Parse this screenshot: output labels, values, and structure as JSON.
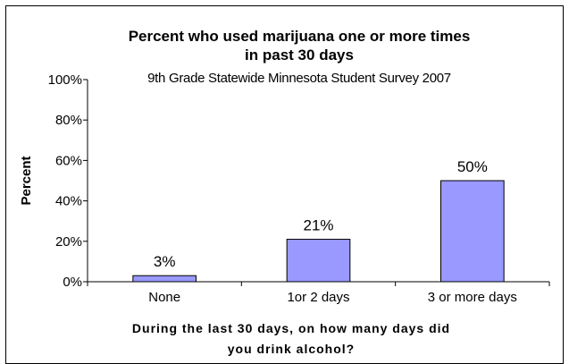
{
  "chart_data": {
    "type": "bar",
    "title_lines": [
      "Percent who used marijuana one or more times",
      "in past 30 days"
    ],
    "subtitle": "9th Grade Statewide Minnesota Student Survey 2007",
    "categories": [
      "None",
      "1or 2 days",
      "3 or more days"
    ],
    "values": [
      3,
      21,
      50
    ],
    "data_labels": [
      "3%",
      "21%",
      "50%"
    ],
    "xlabel_lines": [
      "During the last 30 days, on how many days did",
      "you drink alcohol?"
    ],
    "ylabel": "Percent",
    "y_ticks": [
      "0%",
      "20%",
      "40%",
      "60%",
      "80%",
      "100%"
    ],
    "ylim": [
      0,
      100
    ],
    "bar_color": "#9999ff",
    "bar_edge_color": "#000000",
    "grid": false,
    "legend": "none"
  }
}
